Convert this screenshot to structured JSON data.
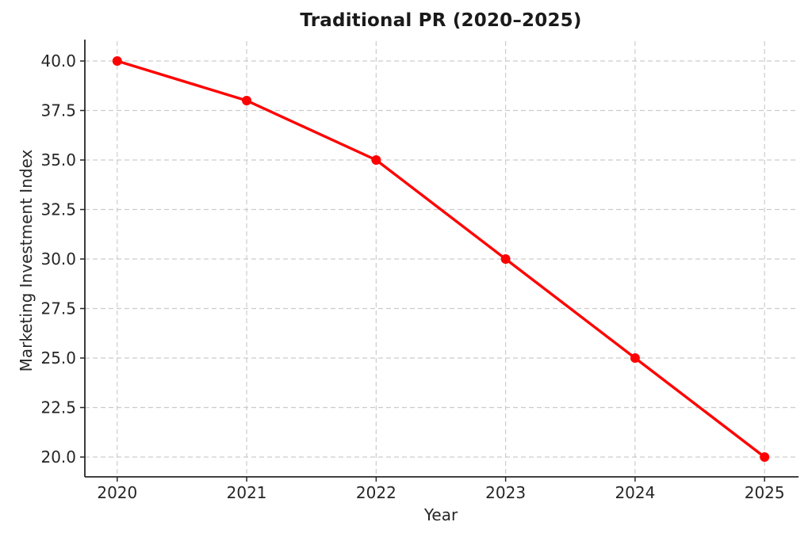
{
  "chart_data": {
    "type": "line",
    "title": "Traditional PR (2020–2025)",
    "xlabel": "Year",
    "ylabel": "Marketing Investment Index",
    "x": [
      2020,
      2021,
      2022,
      2023,
      2024,
      2025
    ],
    "series": [
      {
        "name": "Traditional PR",
        "values": [
          40,
          38,
          35,
          30,
          25,
          20
        ],
        "color": "#ff0000",
        "marker": "circle",
        "marker_radius": 6,
        "line_width": 3.4
      }
    ],
    "xlim": [
      2019.75,
      2025.25
    ],
    "ylim": [
      19,
      41
    ],
    "xticks": [
      2020,
      2021,
      2022,
      2023,
      2024,
      2025
    ],
    "xtick_labels": [
      "2020",
      "2021",
      "2022",
      "2023",
      "2024",
      "2025"
    ],
    "yticks": [
      20.0,
      22.5,
      25.0,
      27.5,
      30.0,
      32.5,
      35.0,
      37.5,
      40.0
    ],
    "ytick_labels": [
      "20.0",
      "22.5",
      "25.0",
      "27.5",
      "30.0",
      "32.5",
      "35.0",
      "37.5",
      "40.0"
    ],
    "grid": {
      "visible": true,
      "style": "dashed",
      "color": "#cccccc"
    },
    "legend": {
      "visible": false
    },
    "axis_color": "#262626",
    "text_color": "#262626",
    "background_color": "#ffffff"
  }
}
